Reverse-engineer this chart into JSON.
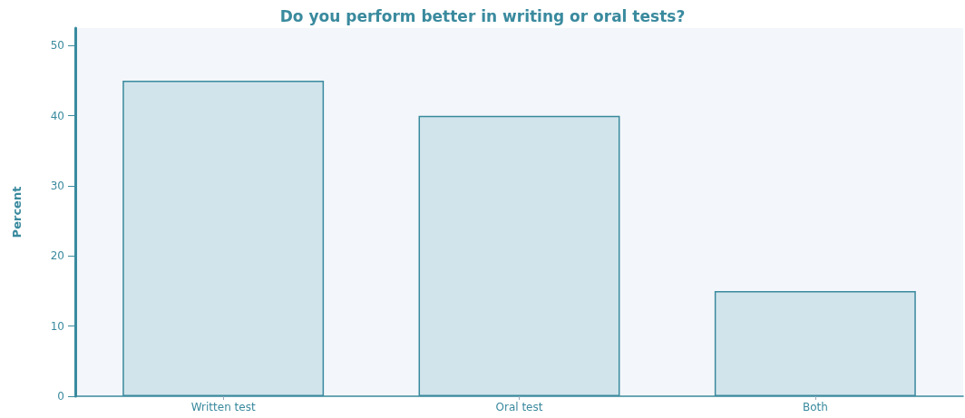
{
  "chart_data": {
    "type": "bar",
    "title": "Do you perform better in writing or oral tests?",
    "ylabel": "Percent",
    "categories": [
      "Written test",
      "Oral test",
      "Both"
    ],
    "values": [
      45,
      40,
      15
    ],
    "color": "#d2e4eb",
    "ylim": [
      0,
      52.5
    ],
    "yticks": [
      0,
      10,
      20,
      30,
      40,
      50
    ],
    "grid": false
  }
}
